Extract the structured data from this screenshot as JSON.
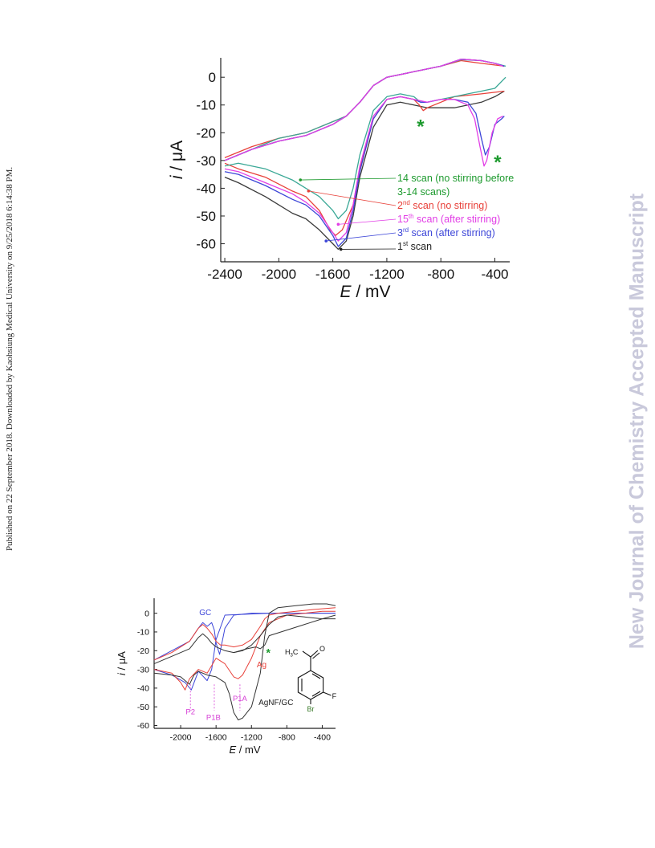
{
  "side_note": "Published on 22 September 2018. Downloaded by Kaohsiung Medical University on 9/25/2018 6:14:38 PM.",
  "watermark": "New Journal of Chemistry Accepted Manuscript",
  "chart_data": [
    {
      "type": "line",
      "xlabel_italic": "E",
      "xlabel_unit": " / mV",
      "ylabel_italic": "i",
      "ylabel_unit": " / μA",
      "xlim": [
        -2430,
        -290
      ],
      "ylim": [
        -66.5,
        7
      ],
      "xticks": [
        -2400,
        -2000,
        -1600,
        -1200,
        -800,
        -400
      ],
      "yticks": [
        0,
        -10,
        -20,
        -30,
        -40,
        -50,
        -60
      ],
      "colors": {
        "black": "#3a3a3a",
        "red": "#e8413a",
        "green": "#3aa896",
        "blue": "#3d46d8",
        "magenta": "#e23fe6",
        "annot_green": "#1d9a2e"
      },
      "legend": [
        {
          "sup_label": "14",
          "rest": " scan (no stirring before",
          "color": "#1d9a2e"
        },
        {
          "plain": "3-14 scans)",
          "color": "#1d9a2e"
        },
        {
          "sup_label": "2",
          "sup": "nd",
          "rest": " scan (no stirring)",
          "color": "#e8413a"
        },
        {
          "sup_label": "15",
          "sup": "th",
          "rest": " scan (after stirring)",
          "color": "#e23fe6"
        },
        {
          "sup_label": "3",
          "sup": "rd",
          "rest": " scan (after stirring)",
          "color": "#3d46d8"
        },
        {
          "sup_label": "1",
          "sup": "st",
          "rest": " scan",
          "color": "#222222"
        }
      ],
      "annotations": [
        "*",
        "*"
      ],
      "series": [
        {
          "color": "black",
          "x": [
            -2400,
            -2300,
            -2100,
            -1900,
            -1800,
            -1700,
            -1600,
            -1560,
            -1500,
            -1450,
            -1400,
            -1300,
            -1200,
            -1100,
            -1000,
            -900,
            -700,
            -500,
            -400,
            -330
          ],
          "y": [
            -36,
            -38,
            -43,
            -49,
            -51,
            -55,
            -60,
            -62,
            -59,
            -50,
            -36,
            -18,
            -10,
            -9,
            -10,
            -11,
            -11,
            -9,
            -7,
            -5
          ]
        },
        {
          "color": "black",
          "x": [
            -330,
            -400,
            -500,
            -650,
            -800,
            -1000,
            -1200,
            -1300,
            -1400,
            -1500,
            -1600,
            -1800,
            -2000,
            -2200,
            -2400
          ],
          "y": [
            4,
            5,
            6,
            6.5,
            4,
            2,
            0,
            -3,
            -9,
            -14,
            -17,
            -21,
            -23,
            -26,
            -30
          ]
        },
        {
          "color": "red",
          "x": [
            -2400,
            -2300,
            -2100,
            -1900,
            -1800,
            -1700,
            -1620,
            -1580,
            -1530,
            -1450,
            -1400,
            -1300,
            -1200,
            -1100,
            -1000,
            -960,
            -930,
            -900,
            -800,
            -700,
            -500,
            -330
          ],
          "y": [
            -31,
            -33,
            -36,
            -41,
            -43,
            -48,
            -55,
            -57,
            -55,
            -46,
            -33,
            -15,
            -8,
            -7,
            -8,
            -10,
            -12,
            -11,
            -9,
            -7,
            -6,
            -5
          ]
        },
        {
          "color": "red",
          "x": [
            -330,
            -500,
            -650,
            -800,
            -1000,
            -1200,
            -1300,
            -1400,
            -1500,
            -1600,
            -1800,
            -2000,
            -2200,
            -2400
          ],
          "y": [
            4,
            5,
            6,
            4,
            2,
            0,
            -3,
            -9,
            -14,
            -16,
            -20,
            -22,
            -25,
            -29
          ]
        },
        {
          "color": "green",
          "x": [
            -2400,
            -2300,
            -2100,
            -1900,
            -1800,
            -1700,
            -1600,
            -1560,
            -1500,
            -1450,
            -1400,
            -1300,
            -1200,
            -1100,
            -1000,
            -950,
            -900,
            -800,
            -700,
            -600,
            -500,
            -400,
            -320
          ],
          "y": [
            -32,
            -31,
            -33,
            -37,
            -40,
            -43,
            -48,
            -51,
            -48,
            -40,
            -28,
            -12,
            -7,
            -6,
            -7,
            -9,
            -9,
            -8,
            -7,
            -6,
            -5,
            -4,
            0
          ]
        },
        {
          "color": "green",
          "x": [
            -320,
            -400,
            -500,
            -650,
            -800,
            -1000,
            -1200,
            -1300,
            -1400,
            -1500,
            -1600,
            -1800,
            -2000,
            -2200,
            -2400
          ],
          "y": [
            4,
            5,
            6,
            6.3,
            4,
            2,
            0,
            -3,
            -9,
            -14,
            -16,
            -20,
            -22,
            -26,
            -30
          ]
        },
        {
          "color": "blue",
          "x": [
            -2400,
            -2300,
            -2100,
            -1900,
            -1800,
            -1700,
            -1600,
            -1560,
            -1500,
            -1450,
            -1400,
            -1300,
            -1200,
            -1100,
            -1000,
            -950,
            -900,
            -800,
            -700,
            -600,
            -540,
            -500,
            -470,
            -440,
            -400,
            -350,
            -330
          ],
          "y": [
            -34,
            -35,
            -39,
            -44,
            -46,
            -50,
            -57,
            -61,
            -58,
            -48,
            -34,
            -15,
            -8,
            -7,
            -8,
            -9,
            -9,
            -8,
            -8,
            -9,
            -13,
            -22,
            -28,
            -25,
            -17,
            -15,
            -14
          ]
        },
        {
          "color": "blue",
          "x": [
            -330,
            -400,
            -500,
            -650,
            -800,
            -1000,
            -1200,
            -1300,
            -1400,
            -1500,
            -1600,
            -1800,
            -2000,
            -2200,
            -2400
          ],
          "y": [
            4,
            5,
            6,
            6.5,
            4,
            2,
            0,
            -3,
            -9,
            -14,
            -17,
            -21,
            -23,
            -26,
            -30
          ]
        },
        {
          "color": "magenta",
          "x": [
            -2400,
            -2300,
            -2100,
            -1900,
            -1800,
            -1700,
            -1600,
            -1560,
            -1500,
            -1450,
            -1400,
            -1300,
            -1200,
            -1100,
            -1000,
            -900,
            -800,
            -700,
            -600,
            -550,
            -510,
            -480,
            -460,
            -420,
            -380,
            -340
          ],
          "y": [
            -33,
            -34,
            -38,
            -42,
            -45,
            -49,
            -56,
            -59,
            -56,
            -46,
            -32,
            -14,
            -8,
            -7,
            -8,
            -9,
            -8,
            -8,
            -10,
            -15,
            -25,
            -32,
            -30,
            -20,
            -15,
            -14
          ]
        },
        {
          "color": "magenta",
          "x": [
            -340,
            -400,
            -500,
            -650,
            -800,
            -1000,
            -1200,
            -1300,
            -1400,
            -1500,
            -1600,
            -1800,
            -2000,
            -2200,
            -2400
          ],
          "y": [
            4,
            5,
            6,
            6.5,
            4,
            2,
            0,
            -3,
            -9,
            -14,
            -17,
            -21,
            -23,
            -26,
            -30
          ]
        }
      ]
    },
    {
      "type": "line",
      "xlabel_italic": "E",
      "xlabel_unit": " / mV",
      "ylabel_italic": "i",
      "ylabel_unit": " / μA",
      "xlim": [
        -2300,
        -250
      ],
      "ylim": [
        -61.5,
        8
      ],
      "xticks": [
        -2000,
        -1600,
        -1200,
        -800,
        -400
      ],
      "yticks": [
        0,
        -10,
        -20,
        -30,
        -40,
        -50,
        -60
      ],
      "colors": {
        "black": "#333333",
        "red": "#e8413a",
        "blue": "#3d46d8",
        "magenta": "#d63fd6",
        "annot_green": "#1d9a2e"
      },
      "curve_labels": [
        {
          "text": "GC",
          "color": "#3d46d8",
          "x": -1790,
          "y": -1
        },
        {
          "text": "Ag",
          "color": "#e8413a",
          "x": -1140,
          "y": -29
        },
        {
          "text": "AgNF/GC",
          "color": "#222222",
          "x": -1120,
          "y": -49
        }
      ],
      "peak_labels": [
        {
          "text": "P2",
          "x": -1890,
          "y": -54
        },
        {
          "text": "P1B",
          "x": -1630,
          "y": -57
        },
        {
          "text": "P1A",
          "x": -1330,
          "y": -47
        }
      ],
      "peaks_x": [
        -1890,
        -1620,
        -1330
      ],
      "annotation": "*",
      "molecule_labels": {
        "methyl": "H3C",
        "carbonyl_o": "O",
        "fluorine": "F",
        "bromine": "Br"
      },
      "series": [
        {
          "color": "blue",
          "x": [
            -2300,
            -2100,
            -1900,
            -1800,
            -1750,
            -1700,
            -1650,
            -1620,
            -1600,
            -1560,
            -1500,
            -1400,
            -1200,
            -800,
            -400,
            -250
          ],
          "y": [
            -25,
            -20,
            -15,
            -8,
            -5,
            -7,
            -5,
            -9,
            -16,
            -22,
            -8,
            -1,
            0,
            0,
            0,
            0
          ]
        },
        {
          "color": "blue",
          "x": [
            -250,
            -500,
            -1000,
            -1500,
            -1600,
            -1650,
            -1700,
            -1800,
            -1880,
            -1950,
            -2100,
            -2300
          ],
          "y": [
            0,
            0,
            0,
            -1,
            -14,
            -30,
            -36,
            -31,
            -41,
            -37,
            -33,
            -30
          ]
        },
        {
          "color": "red",
          "x": [
            -2300,
            -2100,
            -1900,
            -1800,
            -1750,
            -1700,
            -1650,
            -1600,
            -1550,
            -1500,
            -1400,
            -1300,
            -1200,
            -1100,
            -1050,
            -1000,
            -900,
            -700,
            -500,
            -250
          ],
          "y": [
            -25,
            -21,
            -15,
            -8,
            -6,
            -8,
            -11,
            -15,
            -17,
            -17,
            -18,
            -17,
            -14,
            -7,
            -3,
            -1,
            0,
            1,
            2,
            3
          ]
        },
        {
          "color": "red",
          "x": [
            -250,
            -400,
            -600,
            -800,
            -1000,
            -1100,
            -1200,
            -1300,
            -1350,
            -1400,
            -1500,
            -1600,
            -1700,
            -1800,
            -1900,
            -1950,
            -2000,
            -2100,
            -2300
          ],
          "y": [
            1,
            1,
            0,
            -1,
            -5,
            -12,
            -24,
            -33,
            -35,
            -34,
            -27,
            -24,
            -32,
            -30,
            -35,
            -41,
            -37,
            -32,
            -30
          ]
        },
        {
          "color": "black",
          "x": [
            -2300,
            -2100,
            -1900,
            -1800,
            -1750,
            -1700,
            -1650,
            -1600,
            -1500,
            -1400,
            -1300,
            -1200,
            -1100,
            -1000,
            -900,
            -800,
            -600,
            -400,
            -250
          ],
          "y": [
            -27,
            -23,
            -19,
            -13,
            -11,
            -13,
            -16,
            -18,
            -20,
            -21,
            -20,
            -17,
            -12,
            -6,
            -2,
            -1,
            -2,
            -3,
            -3
          ]
        },
        {
          "color": "black",
          "x": [
            -250,
            -350,
            -500,
            -700,
            -900,
            -1000,
            -1050,
            -1100,
            -1200,
            -1300,
            -1350,
            -1400,
            -1450,
            -1500,
            -1600,
            -1700,
            -1800,
            -1850,
            -1900,
            -2000,
            -2100,
            -2300
          ],
          "y": [
            4,
            5,
            5,
            4,
            3,
            0,
            -12,
            -32,
            -50,
            -56,
            -57,
            -53,
            -43,
            -37,
            -34,
            -33,
            -31,
            -33,
            -38,
            -34,
            -33,
            -32
          ]
        },
        {
          "color": "black",
          "x": [
            -250,
            -400,
            -600,
            -800,
            -1000,
            -1050,
            -1100,
            -1150,
            -1250,
            -1400
          ],
          "y": [
            -1,
            -3,
            -6,
            -9,
            -12,
            -17,
            -19,
            -18,
            -19,
            -21
          ]
        }
      ]
    }
  ]
}
